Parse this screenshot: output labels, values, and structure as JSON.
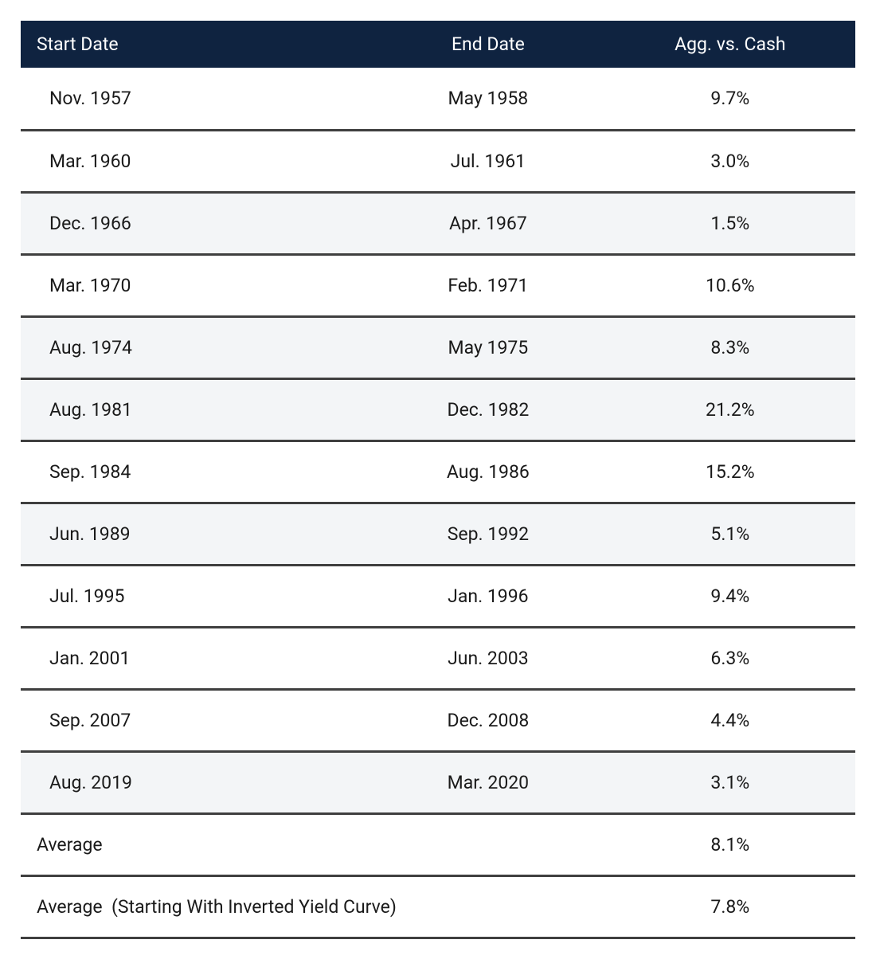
{
  "table": {
    "type": "table",
    "header_bg": "#0f2340",
    "header_text_color": "#ffffff",
    "row_bg": "#ffffff",
    "row_alt_bg": "#f3f5f7",
    "border_color": "#3f3f3f",
    "text_color": "#1a1a1a",
    "font_size_pt": 17,
    "columns": [
      {
        "key": "start",
        "label": "Start Date",
        "align": "left",
        "width_pct": 42
      },
      {
        "key": "end",
        "label": "End Date",
        "align": "center",
        "width_pct": 28
      },
      {
        "key": "val",
        "label": "Agg. vs. Cash",
        "align": "center",
        "width_pct": 30
      }
    ],
    "rows": [
      {
        "start": "Nov. 1957",
        "end": "May 1958",
        "val": "9.7%",
        "alt": false
      },
      {
        "start": "Mar. 1960",
        "end": "Jul. 1961",
        "val": "3.0%",
        "alt": false
      },
      {
        "start": "Dec. 1966",
        "end": "Apr. 1967",
        "val": "1.5%",
        "alt": true
      },
      {
        "start": "Mar. 1970",
        "end": "Feb. 1971",
        "val": "10.6%",
        "alt": false
      },
      {
        "start": "Aug. 1974",
        "end": "May 1975",
        "val": "8.3%",
        "alt": true
      },
      {
        "start": "Aug. 1981",
        "end": "Dec. 1982",
        "val": "21.2%",
        "alt": true
      },
      {
        "start": "Sep. 1984",
        "end": "Aug. 1986",
        "val": "15.2%",
        "alt": false
      },
      {
        "start": "Jun. 1989",
        "end": "Sep. 1992",
        "val": "5.1%",
        "alt": true
      },
      {
        "start": "Jul. 1995",
        "end": "Jan. 1996",
        "val": "9.4%",
        "alt": false
      },
      {
        "start": "Jan. 2001",
        "end": "Jun. 2003",
        "val": "6.3%",
        "alt": false
      },
      {
        "start": "Sep. 2007",
        "end": "Dec. 2008",
        "val": "4.4%",
        "alt": false
      },
      {
        "start": "Aug. 2019",
        "end": "Mar. 2020",
        "val": "3.1%",
        "alt": true
      }
    ],
    "summary": [
      {
        "label": "Average",
        "val": "8.1%"
      },
      {
        "label": "Average  (Starting With Inverted Yield Curve)",
        "val": "7.8%"
      }
    ]
  }
}
